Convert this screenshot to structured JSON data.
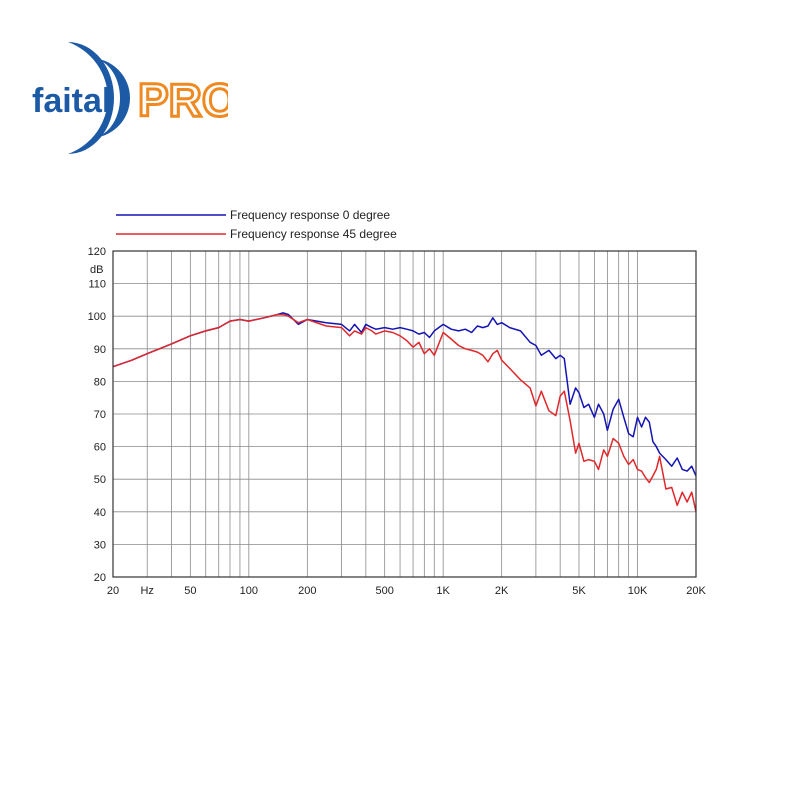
{
  "logo": {
    "text_left": "faital",
    "text_right": "PRO",
    "colors": {
      "blue": "#1c5aa6",
      "orange": "#ef8a22"
    }
  },
  "chart_data": {
    "type": "line",
    "title": "",
    "xlabel": "Hz",
    "ylabel": "dB",
    "x_scale": "log",
    "xlim": [
      20,
      20000
    ],
    "ylim": [
      20,
      120
    ],
    "grid": true,
    "legend_position": "top-left",
    "x_ticks": [
      {
        "value": 20,
        "label": "20"
      },
      {
        "value": 30,
        "label": "Hz"
      },
      {
        "value": 50,
        "label": "50"
      },
      {
        "value": 100,
        "label": "100"
      },
      {
        "value": 200,
        "label": "200"
      },
      {
        "value": 500,
        "label": "500"
      },
      {
        "value": 1000,
        "label": "1K"
      },
      {
        "value": 2000,
        "label": "2K"
      },
      {
        "value": 5000,
        "label": "5K"
      },
      {
        "value": 10000,
        "label": "10K"
      },
      {
        "value": 20000,
        "label": "20K"
      }
    ],
    "y_ticks": [
      {
        "value": 120,
        "label": "120"
      },
      {
        "value": 110,
        "label": "110"
      },
      {
        "value": 100,
        "label": "100"
      },
      {
        "value": 90,
        "label": "90"
      },
      {
        "value": 80,
        "label": "80"
      },
      {
        "value": 70,
        "label": "70"
      },
      {
        "value": 60,
        "label": "60"
      },
      {
        "value": 50,
        "label": "50"
      },
      {
        "value": 40,
        "label": "40"
      },
      {
        "value": 30,
        "label": "30"
      },
      {
        "value": 20,
        "label": "20"
      }
    ],
    "series": [
      {
        "name": "Frequency response 0 degree",
        "color": "#1414b4",
        "x": [
          20,
          25,
          30,
          40,
          50,
          60,
          70,
          80,
          90,
          100,
          120,
          140,
          150,
          160,
          180,
          200,
          250,
          300,
          330,
          350,
          380,
          400,
          430,
          450,
          500,
          550,
          600,
          650,
          700,
          750,
          800,
          850,
          900,
          1000,
          1100,
          1200,
          1300,
          1400,
          1500,
          1600,
          1700,
          1800,
          1900,
          2000,
          2200,
          2500,
          2800,
          3000,
          3200,
          3500,
          3800,
          4000,
          4200,
          4500,
          4800,
          5000,
          5300,
          5600,
          6000,
          6300,
          6700,
          7000,
          7500,
          8000,
          8500,
          9000,
          9500,
          10000,
          10500,
          11000,
          11500,
          12000,
          12500,
          13000,
          14000,
          15000,
          16000,
          17000,
          18000,
          19000,
          20000
        ],
        "y": [
          84.5,
          86.5,
          88.5,
          91.5,
          94,
          95.5,
          96.5,
          98.5,
          99,
          98.5,
          99.5,
          100.5,
          101,
          100.5,
          97.5,
          99,
          98,
          97.5,
          95.5,
          97.5,
          95,
          97.5,
          96.5,
          96,
          96.5,
          96,
          96.5,
          96,
          95.5,
          94.5,
          95,
          93.5,
          95.5,
          97.5,
          96,
          95.5,
          96,
          95,
          97,
          96.5,
          97,
          99.5,
          97.5,
          98,
          96.5,
          95.5,
          92,
          91,
          88,
          89.5,
          87,
          88,
          87,
          73,
          78,
          76.5,
          72,
          73,
          69,
          73,
          70,
          65,
          71.5,
          74.5,
          69,
          64,
          63,
          69,
          66,
          69,
          67.5,
          61.5,
          60,
          58,
          56,
          54,
          56.5,
          53,
          52.5,
          54,
          51
        ]
      },
      {
        "name": "Frequency response 45 degree",
        "color": "#e0282c",
        "x": [
          20,
          25,
          30,
          40,
          50,
          60,
          70,
          80,
          90,
          100,
          120,
          140,
          150,
          160,
          180,
          200,
          250,
          300,
          330,
          350,
          380,
          400,
          430,
          450,
          500,
          550,
          600,
          650,
          700,
          750,
          800,
          850,
          900,
          1000,
          1100,
          1200,
          1300,
          1400,
          1500,
          1600,
          1700,
          1800,
          1900,
          2000,
          2200,
          2500,
          2800,
          3000,
          3200,
          3500,
          3800,
          4000,
          4200,
          4500,
          4800,
          5000,
          5300,
          5600,
          6000,
          6300,
          6700,
          7000,
          7500,
          8000,
          8500,
          9000,
          9500,
          10000,
          10500,
          11000,
          11500,
          12000,
          12500,
          13000,
          14000,
          15000,
          16000,
          17000,
          18000,
          19000,
          20000
        ],
        "y": [
          84.5,
          86.5,
          88.5,
          91.5,
          94,
          95.5,
          96.5,
          98.5,
          99,
          98.5,
          99.5,
          100.5,
          100.5,
          100,
          98,
          99,
          97,
          96.5,
          94,
          95.5,
          94.5,
          96.5,
          95.5,
          94.5,
          95.5,
          95,
          94,
          92.5,
          90.5,
          92,
          88.5,
          90,
          88,
          95,
          93,
          91,
          90,
          89.5,
          89,
          88,
          86,
          88.5,
          89.5,
          86.5,
          84,
          80.5,
          78,
          72.5,
          77,
          71,
          69.5,
          75.5,
          77,
          68,
          58,
          61,
          55.5,
          56,
          55.5,
          53,
          59,
          57,
          62.5,
          61,
          57,
          54.5,
          56,
          53,
          52.5,
          50.5,
          49,
          51,
          53,
          57,
          47,
          47.5,
          42,
          46,
          43,
          46,
          40
        ]
      }
    ]
  }
}
